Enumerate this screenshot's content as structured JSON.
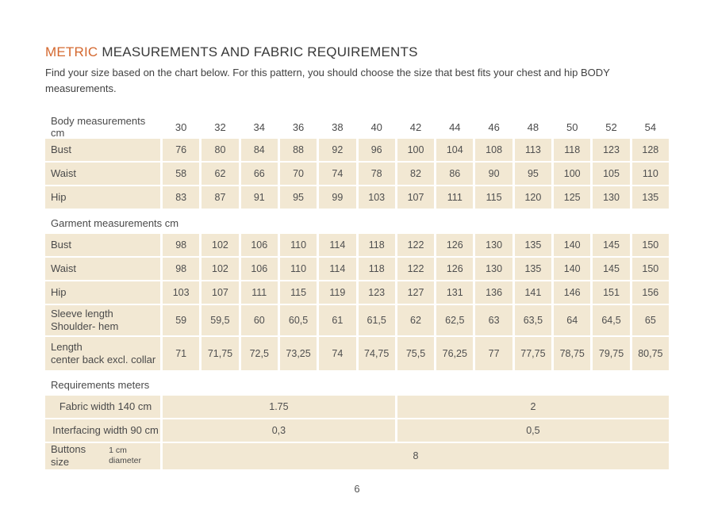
{
  "page": {
    "title_accent": "METRIC",
    "title_rest": "MEASUREMENTS AND FABRIC REQUIREMENTS",
    "subtitle": "Find your size based on the chart below. For this pattern, you should choose the size that best fits your chest and hip BODY measurements.",
    "page_number": "6"
  },
  "colors": {
    "accent": "#D4682F",
    "cell_bg": "#F2E8D3",
    "text": "#4E4E4E"
  },
  "table": {
    "size_header": {
      "label": "Body measurements cm",
      "sizes": [
        "30",
        "32",
        "34",
        "36",
        "38",
        "40",
        "42",
        "44",
        "46",
        "48",
        "50",
        "52",
        "54"
      ]
    },
    "body_rows": [
      {
        "label_lines": [
          "Bust"
        ],
        "values": [
          "76",
          "80",
          "84",
          "88",
          "92",
          "96",
          "100",
          "104",
          "108",
          "113",
          "118",
          "123",
          "128"
        ]
      },
      {
        "label_lines": [
          "Waist"
        ],
        "values": [
          "58",
          "62",
          "66",
          "70",
          "74",
          "78",
          "82",
          "86",
          "90",
          "95",
          "100",
          "105",
          "110"
        ]
      },
      {
        "label_lines": [
          "Hip"
        ],
        "values": [
          "83",
          "87",
          "91",
          "95",
          "99",
          "103",
          "107",
          "111",
          "115",
          "120",
          "125",
          "130",
          "135"
        ]
      }
    ],
    "garment_header": "Garment measurements cm",
    "garment_rows": [
      {
        "label_lines": [
          "Bust"
        ],
        "values": [
          "98",
          "102",
          "106",
          "110",
          "114",
          "118",
          "122",
          "126",
          "130",
          "135",
          "140",
          "145",
          "150"
        ]
      },
      {
        "label_lines": [
          "Waist"
        ],
        "values": [
          "98",
          "102",
          "106",
          "110",
          "114",
          "118",
          "122",
          "126",
          "130",
          "135",
          "140",
          "145",
          "150"
        ]
      },
      {
        "label_lines": [
          "Hip"
        ],
        "values": [
          "103",
          "107",
          "111",
          "115",
          "119",
          "123",
          "127",
          "131",
          "136",
          "141",
          "146",
          "151",
          "156"
        ]
      },
      {
        "label_lines": [
          "Sleeve length",
          "Shoulder- hem"
        ],
        "values": [
          "59",
          "59,5",
          "60",
          "60,5",
          "61",
          "61,5",
          "62",
          "62,5",
          "63",
          "63,5",
          "64",
          "64,5",
          "65"
        ]
      },
      {
        "label_lines": [
          "Length",
          "center back excl. collar"
        ],
        "values": [
          "71",
          "71,75",
          "72,5",
          "73,25",
          "74",
          "74,75",
          "75,5",
          "76,25",
          "77",
          "77,75",
          "78,75",
          "79,75",
          "80,75"
        ]
      }
    ],
    "requirements_header": "Requirements meters",
    "requirement_rows": [
      {
        "label": "Fabric width 140 cm",
        "spans": [
          {
            "value": "1.75",
            "cols": 6
          },
          {
            "value": "2",
            "cols": 7
          }
        ]
      },
      {
        "label": "Interfacing width 90 cm",
        "spans": [
          {
            "value": "0,3",
            "cols": 6
          },
          {
            "value": "0,5",
            "cols": 7
          }
        ]
      },
      {
        "label": "Buttons size",
        "label_small": "1 cm diameter",
        "spans": [
          {
            "value": "8",
            "cols": 13
          }
        ]
      }
    ]
  }
}
